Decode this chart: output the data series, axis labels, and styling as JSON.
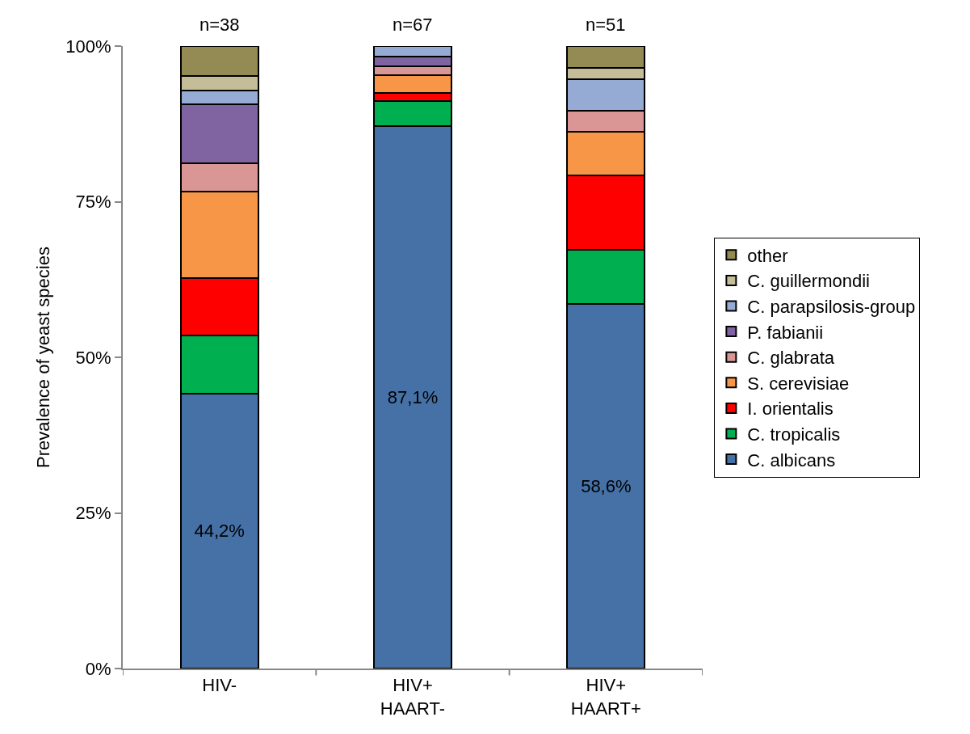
{
  "chart_data": {
    "type": "bar",
    "stacked": true,
    "ylabel": "Prevalence of yeast species",
    "categories": [
      "HIV-",
      "HIV+\nHAART-",
      "HIV+\nHAART+"
    ],
    "series": [
      {
        "name": "C. albicans",
        "color": "#4571a6",
        "values": [
          44.2,
          87.1,
          58.6
        ],
        "value_labels": [
          "44,2%",
          "87,1%",
          "58,6%"
        ]
      },
      {
        "name": "C. tropicalis",
        "color": "#00b050",
        "values": [
          9.3,
          4.1,
          8.7
        ]
      },
      {
        "name": "I. orientalis",
        "color": "#ff0000",
        "values": [
          9.2,
          1.3,
          11.9
        ]
      },
      {
        "name": "S. cerevisiae",
        "color": "#f79646",
        "values": [
          13.9,
          2.8,
          7.0
        ]
      },
      {
        "name": "C. glabrata",
        "color": "#d99694",
        "values": [
          4.6,
          1.5,
          3.4
        ]
      },
      {
        "name": "P. fabianii",
        "color": "#8064a2",
        "values": [
          9.4,
          1.5,
          null
        ]
      },
      {
        "name": "C. parapsilosis-group",
        "color": "#95abd3",
        "values": [
          2.3,
          1.7,
          5.1
        ]
      },
      {
        "name": "C. guillermondii",
        "color": "#c4bd97",
        "values": [
          2.3,
          null,
          1.8
        ]
      },
      {
        "name": "other",
        "color": "#948a54",
        "values": [
          4.8,
          null,
          3.5
        ]
      }
    ],
    "ylim": [
      0,
      100
    ],
    "yticks": [
      {
        "value": 0,
        "label": "0%"
      },
      {
        "value": 25,
        "label": "25%"
      },
      {
        "value": 50,
        "label": "50%"
      },
      {
        "value": 75,
        "label": "75%"
      },
      {
        "value": 100,
        "label": "100%"
      }
    ],
    "annotations": [
      {
        "text": "n=38",
        "x": "HIV-",
        "y": 100
      },
      {
        "text": "n=67",
        "x": "HIV+\nHAART-",
        "y": 100
      },
      {
        "text": "n=51",
        "x": "HIV+\nHAART+",
        "y": 100
      }
    ],
    "grid": false,
    "legend": "right"
  }
}
